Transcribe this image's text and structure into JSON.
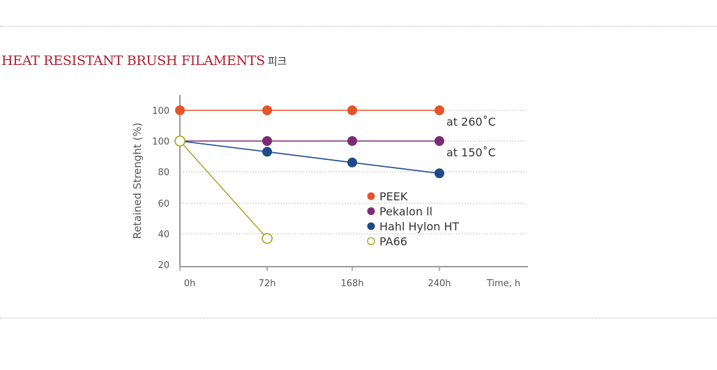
{
  "header": {
    "title": "HEAT RESISTANT BRUSH FILAMENTS",
    "title_suffix": "피크"
  },
  "chart_data": {
    "type": "line",
    "categories": [
      "0h",
      "72h",
      "168h",
      "240h"
    ],
    "x_axis_end_label": "Time, h",
    "ylabel": "Retained Strenght (%)",
    "y_tick_labels": [
      "100",
      "100",
      "80",
      "60",
      "40",
      "20"
    ],
    "grid": true,
    "legend_position": "center-right",
    "series": [
      {
        "name": "PEEK",
        "color": "#e5542a",
        "marker": "filled",
        "values": [
          120,
          120,
          120,
          120
        ]
      },
      {
        "name": "Pekalon ll",
        "color": "#7a2c74",
        "marker": "filled",
        "values": [
          100,
          100,
          100,
          100
        ]
      },
      {
        "name": "Hahl Hylon HT",
        "color": "#1f4a8a",
        "marker": "filled",
        "values": [
          100,
          93,
          86,
          79
        ]
      },
      {
        "name": "PA66",
        "color": "#a9ab36",
        "marker": "hollow",
        "values": [
          100,
          37,
          null,
          null
        ]
      }
    ],
    "annotations": [
      {
        "text": "at 260˚C",
        "series": "PEEK"
      },
      {
        "text": "at 150˚C",
        "series": "Pekalon ll"
      }
    ]
  }
}
